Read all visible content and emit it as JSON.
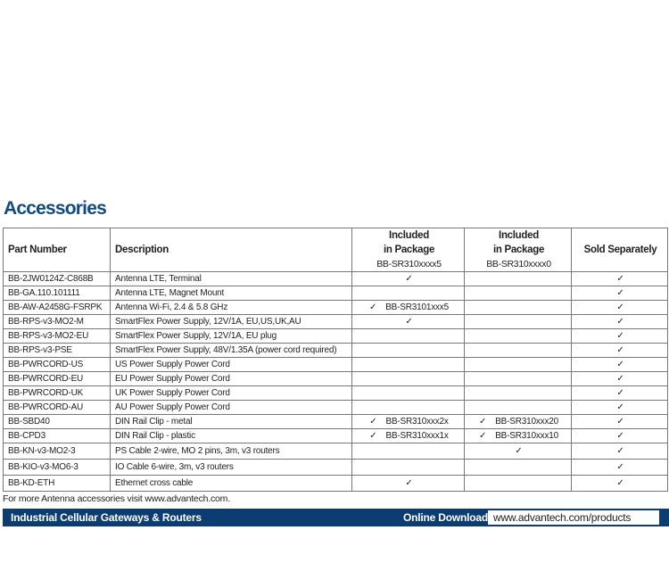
{
  "title": "Accessories",
  "headers": {
    "part": "Part Number",
    "desc": "Description",
    "inc1_a": "Included",
    "inc1_b": "in Package",
    "inc1_model": "BB-SR310xxxx5",
    "inc2_a": "Included",
    "inc2_b": "in Package",
    "inc2_model": "BB-SR310xxxx0",
    "sold": "Sold Separately"
  },
  "check": "✓",
  "rows": [
    {
      "part": "BB-2JW0124Z-C868B",
      "desc": "Antenna LTE, Terminal",
      "inc1": true,
      "inc1_text": "",
      "inc2": false,
      "inc2_text": "",
      "sold": true
    },
    {
      "part": "BB-GA.110.101111",
      "desc": "Antenna LTE, Magnet Mount",
      "inc1": false,
      "inc1_text": "",
      "inc2": false,
      "inc2_text": "",
      "sold": true
    },
    {
      "part": "BB-AW-A2458G-FSRPK",
      "desc": "Antenna Wi-Fi, 2.4 & 5.8 GHz",
      "inc1": true,
      "inc1_text": "BB-SR3101xxx5",
      "inc2": false,
      "inc2_text": "",
      "sold": true
    },
    {
      "part": "BB-RPS-v3-MO2-M",
      "desc": "SmartFlex Power Supply, 12V/1A, EU,US,UK,AU",
      "inc1": true,
      "inc1_text": "",
      "inc2": false,
      "inc2_text": "",
      "sold": true
    },
    {
      "part": "BB-RPS-v3-MO2-EU",
      "desc": "SmartFlex Power Supply, 12V/1A, EU plug",
      "inc1": false,
      "inc1_text": "",
      "inc2": false,
      "inc2_text": "",
      "sold": true
    },
    {
      "part": "BB-RPS-v3-PSE",
      "desc": "SmartFlex Power Supply, 48V/1.35A (power cord required)",
      "inc1": false,
      "inc1_text": "",
      "inc2": false,
      "inc2_text": "",
      "sold": true
    },
    {
      "part": "BB-PWRCORD-US",
      "desc": "US Power Supply Power Cord",
      "inc1": false,
      "inc1_text": "",
      "inc2": false,
      "inc2_text": "",
      "sold": true
    },
    {
      "part": "BB-PWRCORD-EU",
      "desc": "EU Power Supply Power Cord",
      "inc1": false,
      "inc1_text": "",
      "inc2": false,
      "inc2_text": "",
      "sold": true
    },
    {
      "part": "BB-PWRCORD-UK",
      "desc": "UK Power Supply Power Cord",
      "inc1": false,
      "inc1_text": "",
      "inc2": false,
      "inc2_text": "",
      "sold": true
    },
    {
      "part": "BB-PWRCORD-AU",
      "desc": "AU Power Supply Power Cord",
      "inc1": false,
      "inc1_text": "",
      "inc2": false,
      "inc2_text": "",
      "sold": true
    },
    {
      "part": "BB-SBD40",
      "desc": "DIN Rail Clip - metal",
      "inc1": true,
      "inc1_text": "BB-SR310xxx2x",
      "inc2": true,
      "inc2_text": "BB-SR310xxx20",
      "sold": true
    },
    {
      "part": "BB-CPD3",
      "desc": "DIN Rail Clip - plastic",
      "inc1": true,
      "inc1_text": "BB-SR310xxx1x",
      "inc2": true,
      "inc2_text": "BB-SR310xxx10",
      "sold": true
    },
    {
      "part": "BB-KN-v3-MO2-3",
      "desc": "PS Cable 2-wire, MO 2 pins, 3m, v3 routers",
      "inc1": false,
      "inc1_text": "",
      "inc2": true,
      "inc2_text": "",
      "sold": true
    },
    {
      "part": "BB-KIO-v3-MO6-3",
      "desc": "IO Cable 6-wire, 3m, v3 routers",
      "inc1": false,
      "inc1_text": "",
      "inc2": false,
      "inc2_text": "",
      "sold": true
    },
    {
      "part": "BB-KD-ETH",
      "desc": "Ethernet cross cable",
      "inc1": true,
      "inc1_text": "",
      "inc2": false,
      "inc2_text": "",
      "sold": true
    }
  ],
  "note": "For more Antenna accessories visit www.advantech.com.",
  "banner": {
    "left": "Industrial Cellular Gateways & Routers",
    "right_label": "Online Download",
    "url": "www.advantech.com/products"
  }
}
